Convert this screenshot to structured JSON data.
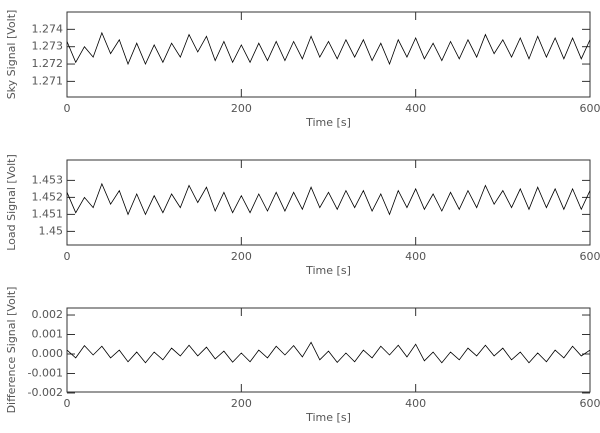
{
  "chart_data": [
    {
      "type": "line",
      "xlabel": "Time [s]",
      "ylabel": "Sky Signal [Volt]",
      "color": "#000000",
      "xlim": [
        0,
        600
      ],
      "xticks": [
        0,
        200,
        400,
        600
      ],
      "ylim": [
        1.2701,
        1.275
      ],
      "yticks": [
        1.271,
        1.272,
        1.273,
        1.274
      ],
      "x": [
        0,
        10,
        20,
        30,
        40,
        50,
        60,
        70,
        80,
        90,
        100,
        110,
        120,
        130,
        140,
        150,
        160,
        170,
        180,
        190,
        200,
        210,
        220,
        230,
        240,
        250,
        260,
        270,
        280,
        290,
        300,
        310,
        320,
        330,
        340,
        350,
        360,
        370,
        380,
        390,
        400,
        410,
        420,
        430,
        440,
        450,
        460,
        470,
        480,
        490,
        500,
        510,
        520,
        530,
        540,
        550,
        560,
        570,
        580,
        590,
        600
      ],
      "values": [
        1.2733,
        1.2721,
        1.273,
        1.2724,
        1.2738,
        1.2726,
        1.2734,
        1.272,
        1.2732,
        1.272,
        1.2731,
        1.2721,
        1.2732,
        1.2724,
        1.2737,
        1.2727,
        1.2736,
        1.2722,
        1.2733,
        1.2721,
        1.2731,
        1.2721,
        1.2732,
        1.2722,
        1.2733,
        1.2722,
        1.2733,
        1.2723,
        1.2736,
        1.2724,
        1.2733,
        1.2723,
        1.2734,
        1.2724,
        1.2734,
        1.2722,
        1.2732,
        1.272,
        1.2734,
        1.2724,
        1.2735,
        1.2723,
        1.2732,
        1.2722,
        1.2733,
        1.2723,
        1.2734,
        1.2724,
        1.2737,
        1.2726,
        1.2734,
        1.2724,
        1.2735,
        1.2723,
        1.2736,
        1.2724,
        1.2735,
        1.2723,
        1.2735,
        1.2723,
        1.2734
      ]
    },
    {
      "type": "line",
      "xlabel": "Time [s]",
      "ylabel": "Load Signal [Volt]",
      "color": "#000000",
      "xlim": [
        0,
        600
      ],
      "xticks": [
        0,
        200,
        400,
        600
      ],
      "ylim": [
        1.4492,
        1.4542
      ],
      "yticks": [
        1.45,
        1.451,
        1.452,
        1.453
      ],
      "x": [
        0,
        10,
        20,
        30,
        40,
        50,
        60,
        70,
        80,
        90,
        100,
        110,
        120,
        130,
        140,
        150,
        160,
        170,
        180,
        190,
        200,
        210,
        220,
        230,
        240,
        250,
        260,
        270,
        280,
        290,
        300,
        310,
        320,
        330,
        340,
        350,
        360,
        370,
        380,
        390,
        400,
        410,
        420,
        430,
        440,
        450,
        460,
        470,
        480,
        490,
        500,
        510,
        520,
        530,
        540,
        550,
        560,
        570,
        580,
        590,
        600
      ],
      "values": [
        1.4523,
        1.4511,
        1.452,
        1.4514,
        1.4528,
        1.4516,
        1.4524,
        1.451,
        1.4522,
        1.451,
        1.4521,
        1.4511,
        1.4522,
        1.4514,
        1.4527,
        1.4517,
        1.4526,
        1.4512,
        1.4523,
        1.4511,
        1.4521,
        1.4511,
        1.4522,
        1.4512,
        1.4523,
        1.4512,
        1.4523,
        1.4513,
        1.4526,
        1.4514,
        1.4523,
        1.4513,
        1.4524,
        1.4514,
        1.4524,
        1.4512,
        1.4522,
        1.451,
        1.4524,
        1.4514,
        1.4525,
        1.4513,
        1.4522,
        1.4512,
        1.4523,
        1.4513,
        1.4524,
        1.4514,
        1.4527,
        1.4516,
        1.4524,
        1.4514,
        1.4525,
        1.4513,
        1.4526,
        1.4514,
        1.4525,
        1.4513,
        1.4525,
        1.4513,
        1.4524
      ]
    },
    {
      "type": "line",
      "xlabel": "Time [s]",
      "ylabel": "Difference Signal [Volt]",
      "color": "#000000",
      "xlim": [
        0,
        600
      ],
      "xticks": [
        0,
        200,
        400,
        600
      ],
      "ylim": [
        -0.00195,
        0.00236
      ],
      "yticks": [
        -0.002,
        -0.001,
        {
          "value": 0,
          "label": "0.000"
        },
        0.001,
        0.002
      ],
      "x": [
        0,
        10,
        20,
        30,
        40,
        50,
        60,
        70,
        80,
        90,
        100,
        110,
        120,
        130,
        140,
        150,
        160,
        170,
        180,
        190,
        200,
        210,
        220,
        230,
        240,
        250,
        260,
        270,
        280,
        290,
        300,
        310,
        320,
        330,
        340,
        350,
        360,
        370,
        380,
        390,
        400,
        410,
        420,
        430,
        440,
        450,
        460,
        470,
        480,
        490,
        500,
        510,
        520,
        530,
        540,
        550,
        560,
        570,
        580,
        590,
        600
      ],
      "values": [
        0.0002,
        -0.0002,
        0.00043,
        -5e-05,
        0.0004,
        -0.0002,
        0.0002,
        -0.0004,
        0.0001,
        -0.00045,
        0.0001,
        -0.0003,
        0.0003,
        -0.0001,
        0.00045,
        -0.0001,
        0.00035,
        -0.00025,
        0.00015,
        -0.00042,
        5e-05,
        -0.0004,
        0.0002,
        -0.0002,
        0.0004,
        -5e-05,
        0.00043,
        -0.00015,
        0.0006,
        -0.0003,
        0.00015,
        -0.00043,
        5e-05,
        -0.0004,
        0.0002,
        -0.0002,
        0.0004,
        -5e-05,
        0.00045,
        -0.00015,
        0.0005,
        -0.00035,
        0.0001,
        -0.00045,
        0.0001,
        -0.0003,
        0.0003,
        -0.0001,
        0.00045,
        -0.0001,
        0.0003,
        -0.0003,
        0.0001,
        -0.00045,
        5e-05,
        -0.0004,
        0.0002,
        -0.0002,
        0.0004,
        -0.0001,
        0.0002
      ]
    }
  ]
}
